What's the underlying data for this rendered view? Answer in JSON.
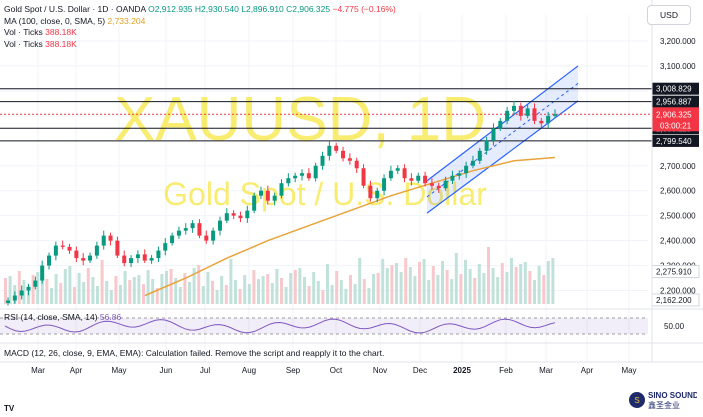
{
  "legend": {
    "title": "Gold Spot / U.S. Dollar · 1D · OANDA",
    "o": "O2,912.935",
    "h": "H2,930.540",
    "l": "L2,896.910",
    "c": "C2,906.325",
    "chg": "−4.775 (−0.16%)",
    "ma_label": "MA (100, close, 0, SMA, 5)",
    "ma_value": "2,733.204",
    "vol1_label": "Vol · Ticks",
    "vol1_value": "388.18K",
    "vol2_label": "Vol · Ticks",
    "vol2_value": "388.18K"
  },
  "currency": "USD",
  "watermark": {
    "symbol": "XAUUSD, 1D",
    "name": "Gold Spot / U.S. Dollar"
  },
  "rsi": {
    "label": "RSI (14, close, SMA, 14)",
    "value": "56.86",
    "axis_label": "50.00"
  },
  "macd": {
    "label": "MACD (12, 26, close, 9, EMA, EMA): Calculation failed. Remove the script and reapply it to the chart."
  },
  "footer": {
    "tv_logo": "TV",
    "brand_en": "SINO SOUND",
    "brand_cn": "鑫圣金业"
  },
  "colors": {
    "up": "#089981",
    "down": "#f23645",
    "ma": "#e8a33c",
    "channel": "#2962ff",
    "rsi": "#7e57c2",
    "watermark": "#f5e642"
  },
  "chart_data": {
    "type": "candlestick",
    "title": "Gold Spot / U.S. Dollar · 1D · OANDA",
    "price_axis": {
      "ticks": [
        3200,
        3100,
        3000,
        2900,
        2800,
        2700,
        2600,
        2500,
        2400,
        2300,
        2200
      ],
      "tick_labels": [
        "3,200.000",
        "3,100.000",
        "3,000.000",
        "2,900.000",
        "2,800.000",
        "2,700.000",
        "2,600.000",
        "2,500.000",
        "2,400.000",
        "2,300.000",
        "2,200.000"
      ],
      "ylim": [
        2140,
        3260
      ]
    },
    "time_axis": [
      "Mar",
      "Apr",
      "May",
      "Jun",
      "Jul",
      "Aug",
      "Sep",
      "Oct",
      "Nov",
      "Dec",
      "2025",
      "Feb",
      "Mar",
      "Apr",
      "May"
    ],
    "horizontal_levels": [
      {
        "value": 3008.829,
        "label": "3,008.829",
        "style": "black"
      },
      {
        "value": 2956.887,
        "label": "2,956.887",
        "style": "black"
      },
      {
        "value": 2850.118,
        "label": "2,850.118",
        "style": "black"
      },
      {
        "value": 2799.54,
        "label": "2,799.540",
        "style": "black"
      },
      {
        "value": 2275.91,
        "label": "2,275.910",
        "style": "grey"
      },
      {
        "value": 2162.2,
        "label": "2,162.200",
        "style": "grey"
      }
    ],
    "current_price": {
      "value": 2906.325,
      "label": "2,906.325",
      "countdown": "03:00:21"
    },
    "closes": [
      2160,
      2180,
      2200,
      2215,
      2240,
      2300,
      2340,
      2380,
      2375,
      2360,
      2330,
      2320,
      2340,
      2380,
      2420,
      2400,
      2340,
      2310,
      2330,
      2345,
      2320,
      2330,
      2360,
      2390,
      2420,
      2440,
      2450,
      2470,
      2420,
      2400,
      2440,
      2480,
      2510,
      2500,
      2490,
      2520,
      2580,
      2600,
      2560,
      2580,
      2630,
      2650,
      2660,
      2670,
      2650,
      2700,
      2740,
      2780,
      2760,
      2730,
      2720,
      2690,
      2620,
      2570,
      2600,
      2650,
      2680,
      2690,
      2650,
      2640,
      2660,
      2630,
      2620,
      2610,
      2640,
      2660,
      2670,
      2700,
      2720,
      2760,
      2800,
      2850,
      2880,
      2920,
      2940,
      2900,
      2930,
      2880,
      2870,
      2900,
      2906
    ],
    "ma100": [
      2180,
      2250,
      2330,
      2400,
      2460,
      2520,
      2580,
      2630,
      2680,
      2720,
      2733
    ],
    "channel": {
      "lower": [
        [
          2640,
          2510
        ],
        [
          2965,
          2960
        ]
      ],
      "upper": [
        [
          2640,
          2560
        ],
        [
          3002,
          3000
        ]
      ],
      "label": ""
    },
    "volume": "bars",
    "rsi_range": [
      30,
      70
    ]
  }
}
